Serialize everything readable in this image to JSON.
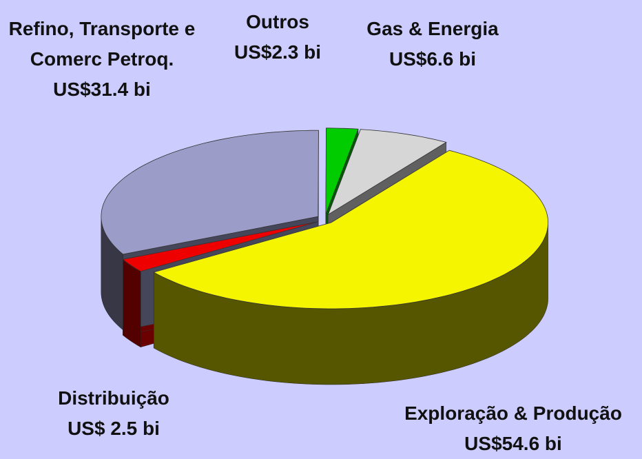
{
  "chart_data": {
    "type": "pie3d",
    "categories": [
      "Exploração & Produção",
      "Distribuição",
      "Refino, Transporte e Comerc Petroq.",
      "Outros",
      "Gas & Energia"
    ],
    "values": [
      54.6,
      2.5,
      31.4,
      2.3,
      6.6
    ],
    "value_labels": [
      "US$54.6 bi",
      "US$ 2.5 bi",
      "US$31.4 bi",
      "US$2.3 bi",
      "US$6.6 bi"
    ],
    "colors": [
      "#f5f500",
      "#ee0000",
      "#9c9cc8",
      "#00cc00",
      "#d6d6d6"
    ]
  }
}
